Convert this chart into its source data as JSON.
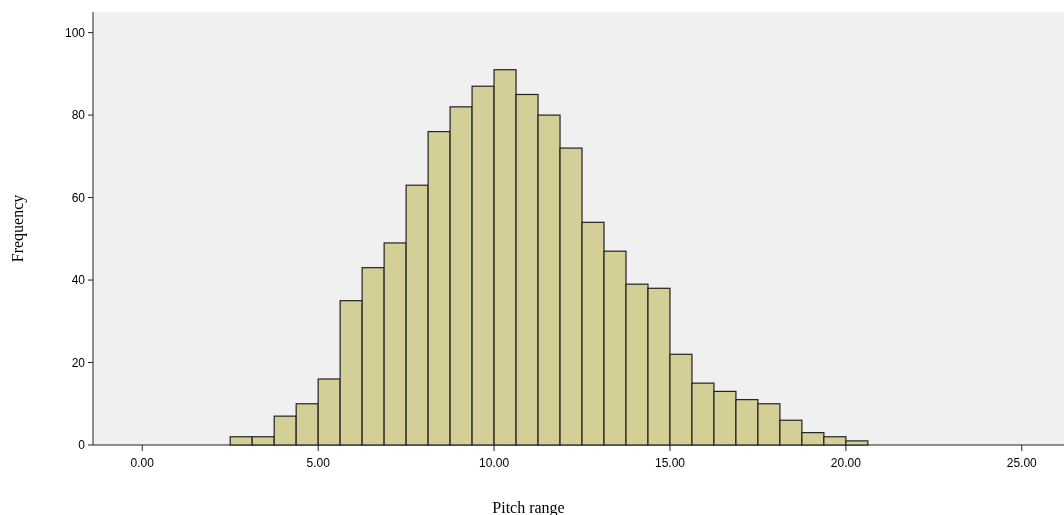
{
  "chart_data": {
    "type": "histogram",
    "xlabel": "Pitch range",
    "ylabel": "Frequency",
    "bins": [
      2.5,
      3.125,
      3.75,
      4.375,
      5,
      5.625,
      6.25,
      6.875,
      7.5,
      8.125,
      8.75,
      9.375,
      10,
      10.625,
      11.25,
      11.875,
      12.5,
      13.125,
      13.75,
      14.375,
      15,
      15.625,
      16.25,
      16.875,
      17.5,
      18.125,
      18.75,
      19.375,
      20,
      20.625
    ],
    "values": [
      2,
      2,
      7,
      10,
      16,
      35,
      43,
      49,
      63,
      76,
      82,
      87,
      91,
      85,
      80,
      72,
      54,
      47,
      39,
      38,
      22,
      15,
      13,
      11,
      10,
      6,
      3,
      2,
      1
    ],
    "color": "#d3cf97",
    "xlim": [
      -1.4,
      26.2
    ],
    "xticks": [
      {
        "value": 0,
        "label": "0.00"
      },
      {
        "value": 5,
        "label": "5.00"
      },
      {
        "value": 10,
        "label": "10.00"
      },
      {
        "value": 15,
        "label": "15.00"
      },
      {
        "value": 20,
        "label": "20.00"
      },
      {
        "value": 25,
        "label": "25.00"
      }
    ],
    "ylim": [
      0,
      105
    ],
    "yticks": [
      0,
      20,
      40,
      60,
      80,
      100
    ]
  }
}
